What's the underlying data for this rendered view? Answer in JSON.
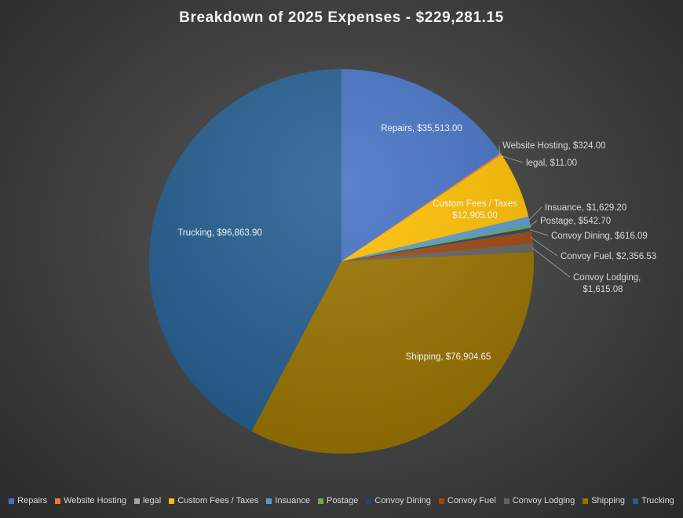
{
  "chart_data": {
    "type": "pie",
    "title": "Breakdown of 2025 Expenses - $229,281.15",
    "legend_position": "bottom",
    "slices": [
      {
        "name": "Repairs",
        "value": 35513.0,
        "label": "Repairs, $35,513.00",
        "color": "#4472c4"
      },
      {
        "name": "Website Hosting",
        "value": 324.0,
        "label": "Website Hosting, $324.00",
        "color": "#ed7d31"
      },
      {
        "name": "legal",
        "value": 11.0,
        "label": "legal, $11.00",
        "color": "#a5a5a5"
      },
      {
        "name": "Custom Fees / Taxes",
        "value": 12905.0,
        "label": "Custom Fees / Taxes, $12,905.00",
        "color": "#ffc000"
      },
      {
        "name": "Insuance",
        "value": 1629.2,
        "label": "Insuance, $1,629.20",
        "color": "#5b9bd5"
      },
      {
        "name": "Postage",
        "value": 542.7,
        "label": "Postage, $542.70",
        "color": "#70ad47"
      },
      {
        "name": "Convoy Dining",
        "value": 616.09,
        "label": "Convoy Dining, $616.09",
        "color": "#264478"
      },
      {
        "name": "Convoy Fuel",
        "value": 2356.53,
        "label": "Convoy Fuel, $2,356.53",
        "color": "#9e480e"
      },
      {
        "name": "Convoy Lodging",
        "value": 1615.08,
        "label": "Convoy Lodging, $1,615.08",
        "color": "#636363"
      },
      {
        "name": "Shipping",
        "value": 76904.65,
        "label": "Shipping, $76,904.65",
        "color": "#997300"
      },
      {
        "name": "Trucking",
        "value": 96863.9,
        "label": "Trucking, $96,863.90",
        "color": "#255e91"
      }
    ]
  }
}
